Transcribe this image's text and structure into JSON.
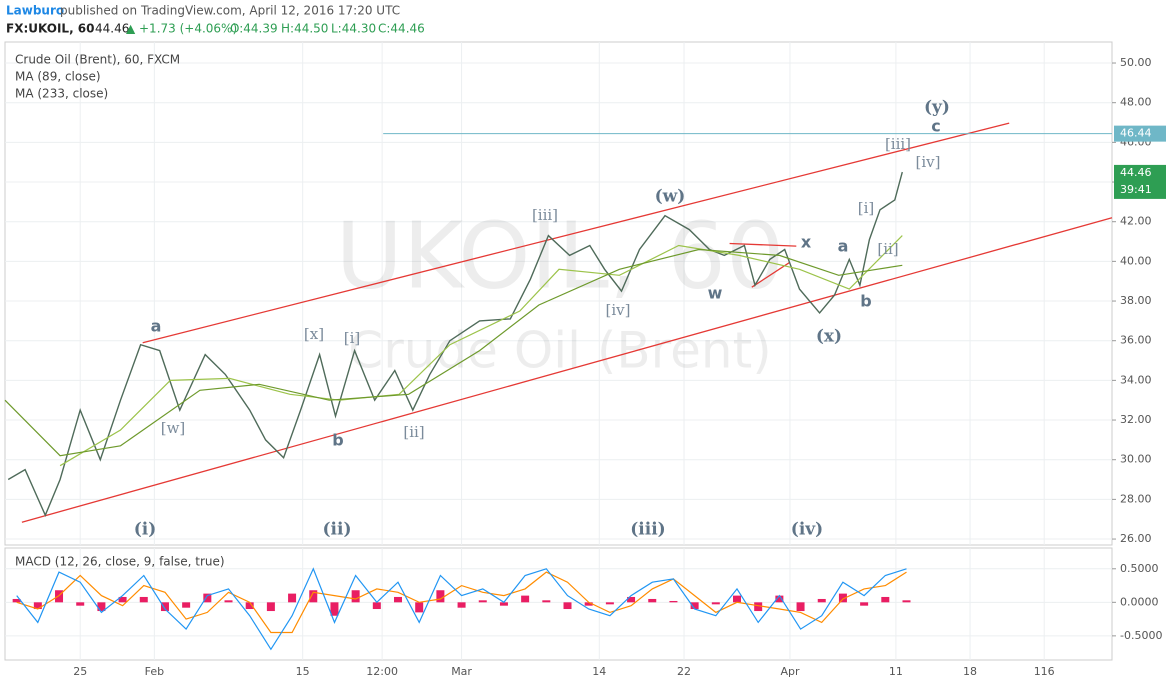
{
  "header": {
    "publisher": "Lawburo",
    "published": "published on TradingView.com, April 12, 2016 17:20 UTC",
    "symbol": "FX:UKOIL, 60",
    "last": "44.46",
    "arrow": "▲",
    "change": "+1.73 (+4.06%)",
    "open": "O:44.39",
    "high": "H:44.50",
    "low": "L:44.30",
    "close": "C:44.46"
  },
  "chart_data": [
    {
      "type": "line",
      "watermark": [
        "UKOIL, 60",
        "Crude Oil (Brent)"
      ],
      "legend": "top-left",
      "grid": true,
      "xlim": [
        17.9,
        122.4
      ],
      "ylim": [
        25.7,
        51.06
      ],
      "yticks": [
        {
          "value": 26,
          "label": "26.00"
        },
        {
          "value": 28,
          "label": "28.00"
        },
        {
          "value": 30,
          "label": "30.00"
        },
        {
          "value": 32,
          "label": "32.00"
        },
        {
          "value": 34,
          "label": "34.00"
        },
        {
          "value": 36,
          "label": "36.00"
        },
        {
          "value": 38,
          "label": "38.00"
        },
        {
          "value": 40,
          "label": "40.00"
        },
        {
          "value": 42,
          "label": "42.00"
        },
        {
          "value": 44,
          "label": "44.00"
        },
        {
          "value": 46,
          "label": "46.00"
        },
        {
          "value": 48,
          "label": "48.00"
        },
        {
          "value": 50,
          "label": "50.00"
        }
      ],
      "series": [
        {
          "name": "Crude Oil (Brent), 60, FXCM",
          "color": "#4f6b5a",
          "x": [
            18.2,
            19.8,
            21.7,
            23.1,
            25,
            26.9,
            28.8,
            30.7,
            32.5,
            34.4,
            36.8,
            38.7,
            41.0,
            42.5,
            44.2,
            45.8,
            47.6,
            49.1,
            50.9,
            52.8,
            54.7,
            56.4,
            58.0,
            59.9,
            62.7,
            65.6,
            67.5,
            69.2,
            71.2,
            73.1,
            74.5,
            76.1,
            77.8,
            80.2,
            82.5,
            84.4,
            85.8,
            87.7,
            88.7,
            90.1,
            91.5,
            92.9,
            94.8,
            96.2,
            97.6,
            98.6,
            99.5,
            100.5,
            101.9,
            102.6
          ],
          "values": [
            29.0,
            29.5,
            27.2,
            29.0,
            32.5,
            30.0,
            33.0,
            35.8,
            35.5,
            32.5,
            35.3,
            34.3,
            32.5,
            31.0,
            30.1,
            32.5,
            35.3,
            32.2,
            35.5,
            33.0,
            34.5,
            32.5,
            34.3,
            36.0,
            37.0,
            37.1,
            39.1,
            41.3,
            40.3,
            40.8,
            39.6,
            38.5,
            40.6,
            42.3,
            41.6,
            40.6,
            40.3,
            40.8,
            38.8,
            40.1,
            40.6,
            38.6,
            37.4,
            38.3,
            40.1,
            38.8,
            41.1,
            42.6,
            43.1,
            44.5
          ]
        },
        {
          "name": "MA (89, close)",
          "color": "#9cc34a",
          "x": [
            23.1,
            28.8,
            33.5,
            39.1,
            44.8,
            49.5,
            55.1,
            59.9,
            66.5,
            70.2,
            75.9,
            81.5,
            87.2,
            92.9,
            97.6,
            102.6
          ],
          "values": [
            29.7,
            31.5,
            34.0,
            34.1,
            33.3,
            33.0,
            33.3,
            35.8,
            37.5,
            39.6,
            39.3,
            40.8,
            40.3,
            39.6,
            38.6,
            41.3
          ]
        },
        {
          "name": "MA (233, close)",
          "color": "#6e9a2c",
          "x": [
            17.9,
            23.1,
            28.8,
            36.3,
            41.9,
            48.5,
            56.0,
            62.7,
            68.3,
            75.9,
            83.4,
            91.0,
            96.6,
            102.6
          ],
          "values": [
            33.0,
            30.2,
            30.7,
            33.5,
            33.8,
            33.0,
            33.3,
            35.5,
            37.8,
            39.6,
            40.6,
            40.3,
            39.3,
            39.8
          ]
        }
      ],
      "trendlines": [
        {
          "color": "#e53935",
          "x": [
            30.9,
            112.7
          ],
          "y": [
            35.9,
            46.97
          ]
        },
        {
          "color": "#e53935",
          "x": [
            19.5,
            122.4
          ],
          "y": [
            26.85,
            42.2
          ]
        },
        {
          "color": "#e53935",
          "x": [
            86.3,
            92.6
          ],
          "y": [
            40.9,
            40.77
          ]
        },
        {
          "color": "#e53935",
          "x": [
            88.4,
            92.0
          ],
          "y": [
            38.7,
            39.96
          ]
        }
      ],
      "hline": {
        "value": 46.44,
        "x": 53.6,
        "color": "#6fb7c7"
      },
      "last_price": 44.46,
      "countdown": "39:41",
      "last_color": "#2e9e53",
      "annotations": [
        "(y)",
        "c",
        "[iii]",
        "[iv]",
        "(w)",
        "[iii]",
        "x",
        "a",
        "[i]",
        "[ii]",
        "w",
        "b",
        "[iv]",
        "(x)",
        "a",
        "[x]",
        "[i]",
        "[w]",
        "b",
        "[ii]",
        "(i)",
        "(ii)",
        "(iii)",
        "(iv)"
      ]
    },
    {
      "type": "macd",
      "title": "MACD (12, 26, close, 9, false, true)",
      "grid": true,
      "xlim": [
        17.9,
        122.4
      ],
      "ylim": [
        -0.86,
        0.81
      ],
      "yticks": [
        {
          "value": -0.5,
          "label": "-0.5000"
        },
        {
          "value": 0,
          "label": "0.0000"
        },
        {
          "value": 0.5,
          "label": "0.5000"
        }
      ],
      "xticks": [
        25,
        {
          "value": 32,
          "label": "Feb"
        },
        {
          "value": 46,
          "label": "15"
        },
        {
          "value": 53.5,
          "label": "12:00"
        },
        {
          "value": 61,
          "label": "Mar"
        },
        {
          "value": 74,
          "label": "14"
        },
        {
          "value": 82,
          "label": "22"
        },
        {
          "value": 92,
          "label": "Apr"
        },
        {
          "value": 102,
          "label": "11"
        },
        {
          "value": 109,
          "label": "18"
        },
        116
      ],
      "x": [
        19,
        21,
        23,
        25,
        27,
        29,
        31,
        33,
        35,
        37,
        39,
        41,
        43,
        45,
        47,
        49,
        51,
        53,
        55,
        57,
        59,
        61,
        63,
        65,
        67,
        69,
        71,
        73,
        75,
        77,
        79,
        81,
        83,
        85,
        87,
        89,
        91,
        93,
        95,
        97,
        99,
        101,
        103
      ],
      "macd": {
        "color": "#2196f3",
        "values": [
          0.1,
          -0.3,
          0.45,
          0.3,
          -0.15,
          0.1,
          0.4,
          -0.1,
          -0.4,
          0.1,
          0.2,
          -0.2,
          -0.7,
          -0.2,
          0.5,
          -0.3,
          0.4,
          0.0,
          0.3,
          -0.3,
          0.4,
          0.1,
          0.2,
          0.0,
          0.4,
          0.5,
          0.1,
          -0.1,
          -0.2,
          0.1,
          0.3,
          0.35,
          -0.1,
          -0.2,
          0.2,
          -0.3,
          0.1,
          -0.4,
          -0.2,
          0.3,
          0.1,
          0.4,
          0.5
        ]
      },
      "signal": {
        "color": "#ff8c00",
        "values": [
          0.0,
          -0.1,
          0.1,
          0.4,
          0.1,
          -0.05,
          0.25,
          0.15,
          -0.25,
          -0.15,
          0.15,
          0.0,
          -0.45,
          -0.45,
          0.15,
          0.1,
          0.05,
          0.2,
          0.15,
          0.0,
          0.05,
          0.25,
          0.15,
          0.1,
          0.2,
          0.45,
          0.3,
          0.0,
          -0.15,
          -0.05,
          0.2,
          0.35,
          0.1,
          -0.15,
          0.0,
          -0.05,
          -0.1,
          -0.15,
          -0.3,
          0.05,
          0.2,
          0.25,
          0.45
        ]
      },
      "histogram": {
        "color": "#e91e63",
        "values": [
          0.05,
          -0.1,
          0.18,
          -0.05,
          -0.13,
          0.08,
          0.08,
          -0.13,
          -0.08,
          0.13,
          0.03,
          -0.1,
          -0.13,
          0.13,
          0.18,
          -0.2,
          0.18,
          -0.1,
          0.08,
          -0.15,
          0.18,
          -0.08,
          0.03,
          -0.05,
          0.1,
          0.03,
          -0.1,
          -0.05,
          -0.03,
          0.08,
          0.05,
          0.02,
          -0.1,
          -0.03,
          0.1,
          -0.13,
          0.1,
          -0.13,
          0.05,
          0.13,
          -0.05,
          0.08,
          0.03
        ]
      }
    }
  ]
}
